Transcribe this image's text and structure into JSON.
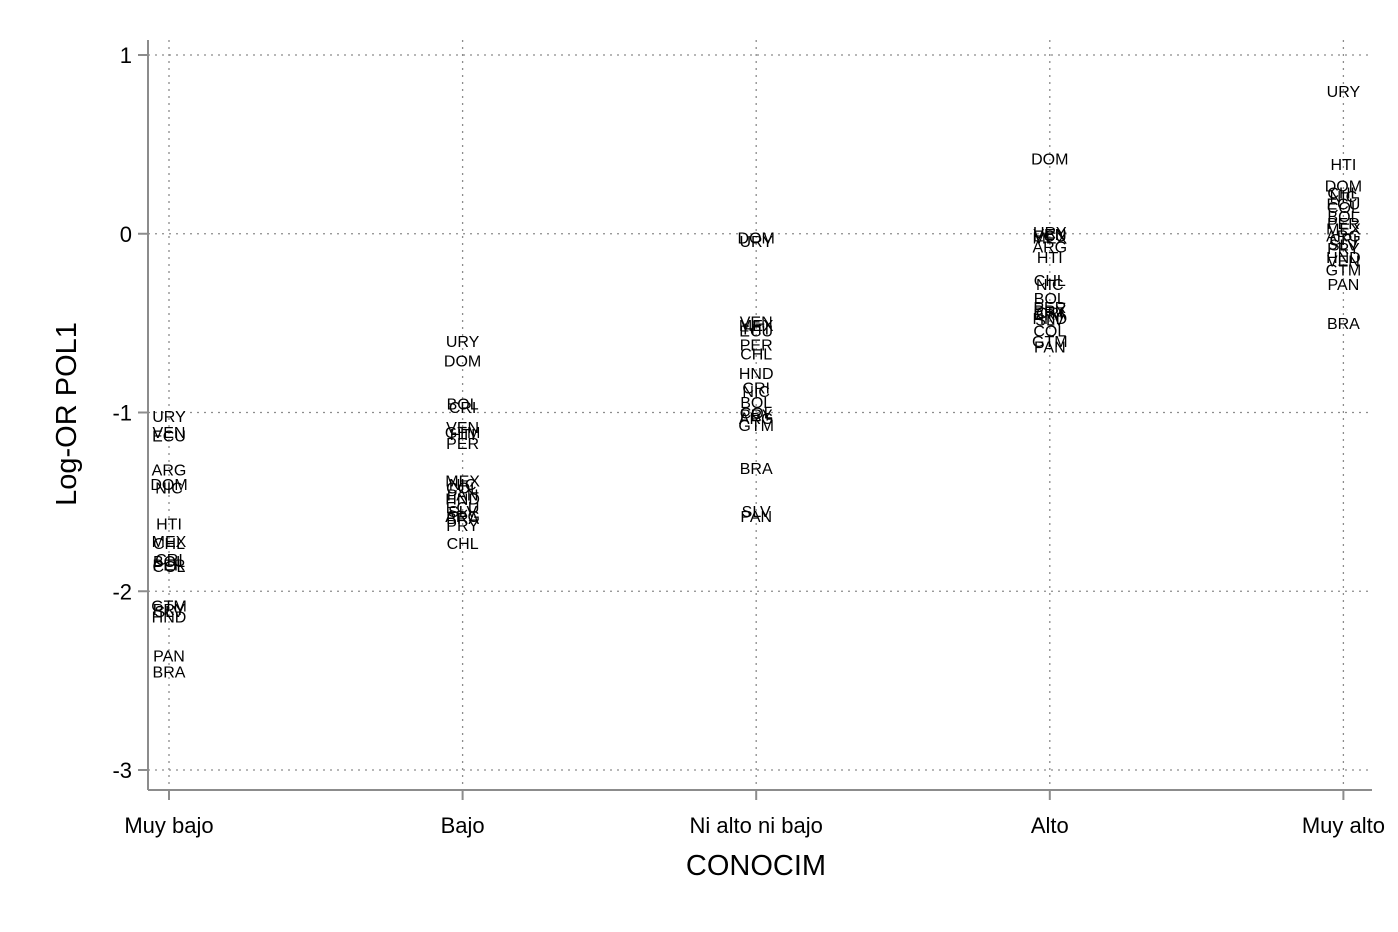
{
  "chart_data": {
    "type": "scatter",
    "xlabel": "CONOCIM",
    "ylabel": "Log-OR POL1",
    "categories": [
      "Muy bajo",
      "Bajo",
      "Ni alto ni bajo",
      "Alto",
      "Muy alto"
    ],
    "y_ticks": [
      "1",
      "0",
      "-1",
      "-2",
      "-3"
    ],
    "y_tick_values": [
      1,
      0,
      -1,
      -2,
      -3
    ],
    "ylim": [
      -3,
      1
    ],
    "grid": true,
    "marker": "country-code text labels",
    "series": [
      {
        "category": "Muy bajo",
        "points": [
          {
            "label": "URY",
            "y": -1.02
          },
          {
            "label": "VEN",
            "y": -1.11
          },
          {
            "label": "ECU",
            "y": -1.13
          },
          {
            "label": "ARG",
            "y": -1.32
          },
          {
            "label": "DOM",
            "y": -1.4
          },
          {
            "label": "NIC",
            "y": -1.42
          },
          {
            "label": "HTI",
            "y": -1.62
          },
          {
            "label": "MEX",
            "y": -1.72
          },
          {
            "label": "CHL",
            "y": -1.73
          },
          {
            "label": "CRI",
            "y": -1.82
          },
          {
            "label": "BOL",
            "y": -1.83
          },
          {
            "label": "PER",
            "y": -1.85
          },
          {
            "label": "COL",
            "y": -1.86
          },
          {
            "label": "GTM",
            "y": -2.08
          },
          {
            "label": "PRY",
            "y": -2.1
          },
          {
            "label": "SLV",
            "y": -2.11
          },
          {
            "label": "HND",
            "y": -2.14
          },
          {
            "label": "PAN",
            "y": -2.36
          },
          {
            "label": "BRA",
            "y": -2.45
          }
        ]
      },
      {
        "category": "Bajo",
        "points": [
          {
            "label": "URY",
            "y": -0.6
          },
          {
            "label": "DOM",
            "y": -0.71
          },
          {
            "label": "BOL",
            "y": -0.95
          },
          {
            "label": "CRI",
            "y": -0.97
          },
          {
            "label": "VEN",
            "y": -1.08
          },
          {
            "label": "GTM",
            "y": -1.11
          },
          {
            "label": "HTI",
            "y": -1.12
          },
          {
            "label": "PER",
            "y": -1.17
          },
          {
            "label": "MEX",
            "y": -1.38
          },
          {
            "label": "NIC",
            "y": -1.4
          },
          {
            "label": "COL",
            "y": -1.42
          },
          {
            "label": "PAN",
            "y": -1.46
          },
          {
            "label": "HND",
            "y": -1.48
          },
          {
            "label": "ECU",
            "y": -1.53
          },
          {
            "label": "SLV",
            "y": -1.55
          },
          {
            "label": "ARG",
            "y": -1.58
          },
          {
            "label": "BRA",
            "y": -1.59
          },
          {
            "label": "PRY",
            "y": -1.63
          },
          {
            "label": "CHL",
            "y": -1.73
          }
        ]
      },
      {
        "category": "Ni alto ni bajo",
        "points": [
          {
            "label": "DOM",
            "y": -0.02
          },
          {
            "label": "URY",
            "y": -0.04
          },
          {
            "label": "VEN",
            "y": -0.49
          },
          {
            "label": "MEX",
            "y": -0.51
          },
          {
            "label": "HTI",
            "y": -0.53
          },
          {
            "label": "ECU",
            "y": -0.54
          },
          {
            "label": "PER",
            "y": -0.62
          },
          {
            "label": "CHL",
            "y": -0.67
          },
          {
            "label": "HND",
            "y": -0.78
          },
          {
            "label": "CRI",
            "y": -0.86
          },
          {
            "label": "NIC",
            "y": -0.88
          },
          {
            "label": "BOL",
            "y": -0.94
          },
          {
            "label": "COL",
            "y": -1.0
          },
          {
            "label": "PRY",
            "y": -1.01
          },
          {
            "label": "ARG",
            "y": -1.03
          },
          {
            "label": "GTM",
            "y": -1.07
          },
          {
            "label": "BRA",
            "y": -1.31
          },
          {
            "label": "SLV",
            "y": -1.55
          },
          {
            "label": "PAN",
            "y": -1.58
          }
        ]
      },
      {
        "category": "Alto",
        "points": [
          {
            "label": "DOM",
            "y": 0.42
          },
          {
            "label": "URY",
            "y": 0.01
          },
          {
            "label": "VEN",
            "y": 0.0
          },
          {
            "label": "ECU",
            "y": -0.01
          },
          {
            "label": "MEX",
            "y": -0.02
          },
          {
            "label": "ARG",
            "y": -0.07
          },
          {
            "label": "HTI",
            "y": -0.13
          },
          {
            "label": "CHL",
            "y": -0.26
          },
          {
            "label": "NIC",
            "y": -0.28
          },
          {
            "label": "BOL",
            "y": -0.36
          },
          {
            "label": "PER",
            "y": -0.41
          },
          {
            "label": "PRY",
            "y": -0.43
          },
          {
            "label": "CRI",
            "y": -0.44
          },
          {
            "label": "BRA",
            "y": -0.45
          },
          {
            "label": "HND",
            "y": -0.47
          },
          {
            "label": "SLV",
            "y": -0.48
          },
          {
            "label": "COL",
            "y": -0.54
          },
          {
            "label": "GTM",
            "y": -0.6
          },
          {
            "label": "PAN",
            "y": -0.63
          }
        ]
      },
      {
        "category": "Muy alto",
        "points": [
          {
            "label": "URY",
            "y": 0.8
          },
          {
            "label": "HTI",
            "y": 0.39
          },
          {
            "label": "DOM",
            "y": 0.27
          },
          {
            "label": "CHL",
            "y": 0.23
          },
          {
            "label": "NIC",
            "y": 0.21
          },
          {
            "label": "ECU",
            "y": 0.17
          },
          {
            "label": "COL",
            "y": 0.15
          },
          {
            "label": "BOL",
            "y": 0.1
          },
          {
            "label": "PER",
            "y": 0.06
          },
          {
            "label": "MEX",
            "y": 0.03
          },
          {
            "label": "ARG",
            "y": -0.01
          },
          {
            "label": "CRI",
            "y": -0.03
          },
          {
            "label": "SLV",
            "y": -0.06
          },
          {
            "label": "PRY",
            "y": -0.08
          },
          {
            "label": "HND",
            "y": -0.13
          },
          {
            "label": "VEN",
            "y": -0.15
          },
          {
            "label": "GTM",
            "y": -0.2
          },
          {
            "label": "PAN",
            "y": -0.28
          },
          {
            "label": "BRA",
            "y": -0.5
          }
        ]
      }
    ]
  }
}
